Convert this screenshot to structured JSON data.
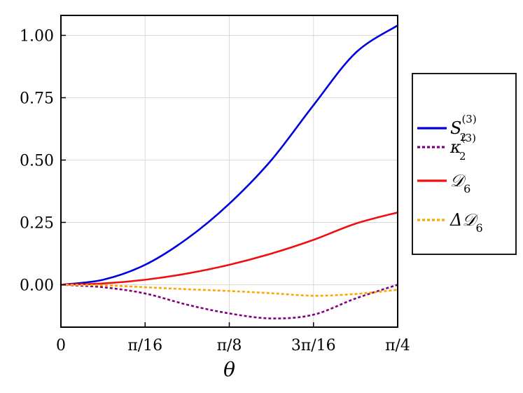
{
  "chart_data": {
    "type": "line",
    "xlabel": "θ",
    "ylabel": "",
    "xlim": [
      0,
      0.785398
    ],
    "ylim": [
      -0.17,
      1.08
    ],
    "grid": true,
    "legend_position": "right",
    "x_ticks": [
      {
        "value": 0,
        "label": "0"
      },
      {
        "value": 0.19635,
        "label": "π/16"
      },
      {
        "value": 0.392699,
        "label": "π/8"
      },
      {
        "value": 0.589049,
        "label": "3π/16"
      },
      {
        "value": 0.785398,
        "label": "π/4"
      }
    ],
    "y_ticks": [
      {
        "value": 0.0,
        "label": "0.00"
      },
      {
        "value": 0.25,
        "label": "0.25"
      },
      {
        "value": 0.5,
        "label": "0.50"
      },
      {
        "value": 0.75,
        "label": "0.75"
      },
      {
        "value": 1.0,
        "label": "1.00"
      }
    ],
    "x": [
      0,
      0.098175,
      0.19635,
      0.294524,
      0.392699,
      0.490874,
      0.589049,
      0.687223,
      0.785398
    ],
    "series": [
      {
        "name": "S",
        "legend": {
          "base": "S",
          "sub": "2",
          "sup": "(3)"
        },
        "color": "#0000e0",
        "dash": "solid",
        "values": [
          0.0,
          0.02,
          0.08,
          0.185,
          0.325,
          0.5,
          0.72,
          0.93,
          1.04
        ]
      },
      {
        "name": "κ",
        "legend": {
          "base": "κ",
          "sub": "2",
          "sup": "(3)"
        },
        "color": "#800080",
        "dash": "dotted",
        "values": [
          0.0,
          -0.01,
          -0.035,
          -0.08,
          -0.115,
          -0.135,
          -0.12,
          -0.055,
          0.0
        ]
      },
      {
        "name": "𝒟",
        "legend": {
          "base": "𝒟",
          "sub": "6",
          "sup": ""
        },
        "color": "#ee1010",
        "dash": "solid",
        "values": [
          0.0,
          0.005,
          0.02,
          0.045,
          0.08,
          0.125,
          0.18,
          0.245,
          0.29
        ]
      },
      {
        "name": "Δ𝒟",
        "legend": {
          "base": "Δ𝒟",
          "sub": "6",
          "sup": ""
        },
        "color": "#ffa500",
        "dash": "dotted",
        "values": [
          0.0,
          -0.002,
          -0.01,
          -0.018,
          -0.025,
          -0.034,
          -0.044,
          -0.037,
          -0.02
        ]
      }
    ]
  }
}
